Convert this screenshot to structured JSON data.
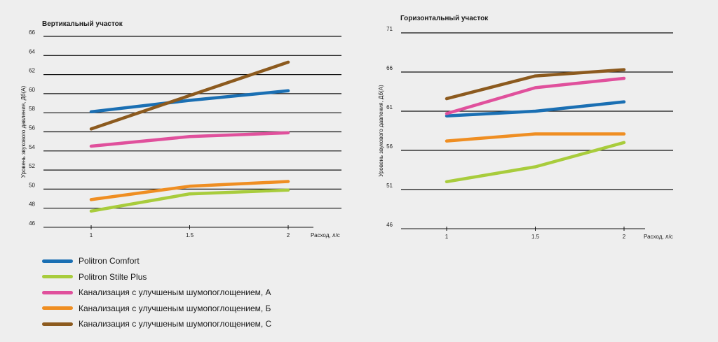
{
  "colors": {
    "background": "#eeeeee",
    "gridline": "#111111",
    "text": "#1a1a1a"
  },
  "chart_data": [
    {
      "type": "line",
      "title": "Вертикальный  участок",
      "xlabel": "Расход, л/с",
      "ylabel": "Уровень звукового давления, Дб(А)",
      "x": [
        1,
        1.5,
        2
      ],
      "x_ticks": [
        "1",
        "1.5",
        "2"
      ],
      "ylim": [
        46,
        66
      ],
      "y_ticks": [
        "46",
        "48",
        "50",
        "52",
        "54",
        "56",
        "58",
        "60",
        "62",
        "64",
        "66"
      ],
      "grid": true,
      "series": [
        {
          "name": "Politron Comfort",
          "color": "#1a6fb3",
          "values": [
            58.1,
            59.3,
            60.3
          ]
        },
        {
          "name": "Politron Stilte Plus",
          "color": "#a8cc3c",
          "values": [
            47.7,
            49.5,
            49.9
          ]
        },
        {
          "name": "Канализация с улучшеным шумопоглощением,  А",
          "color": "#e0509c",
          "values": [
            54.5,
            55.5,
            55.9
          ]
        },
        {
          "name": "Канализация с улучшеным шумопоглощением,  Б",
          "color": "#ef8e22",
          "values": [
            48.9,
            50.3,
            50.8
          ]
        },
        {
          "name": "Канализация с улучшеным шумопоглощением,  С",
          "color": "#8c5a1e",
          "values": [
            56.3,
            59.8,
            63.3
          ]
        }
      ]
    },
    {
      "type": "line",
      "title": "Горизонтальный  участок",
      "xlabel": "Расход, л/с",
      "ylabel": "Уровень звукового давления, Дб(А)",
      "x": [
        1,
        1.5,
        2
      ],
      "x_ticks": [
        "1",
        "1.5",
        "2"
      ],
      "ylim": [
        46,
        71
      ],
      "y_ticks": [
        "46",
        "51",
        "56",
        "61",
        "66",
        "71"
      ],
      "grid": true,
      "series": [
        {
          "name": "Politron Comfort",
          "color": "#1a6fb3",
          "values": [
            60.4,
            61.0,
            62.2
          ]
        },
        {
          "name": "Politron Stilte Plus",
          "color": "#a8cc3c",
          "values": [
            52.0,
            53.9,
            57.0
          ]
        },
        {
          "name": "Канализация с улучшеным шумопоглощением,  А",
          "color": "#e0509c",
          "values": [
            60.7,
            64.0,
            65.2
          ]
        },
        {
          "name": "Канализация с улучшеным шумопоглощением,  Б",
          "color": "#ef8e22",
          "values": [
            57.2,
            58.1,
            58.1
          ]
        },
        {
          "name": "Канализация с улучшеным шумопоглощением,  С",
          "color": "#8c5a1e",
          "values": [
            62.6,
            65.5,
            66.3
          ]
        }
      ]
    }
  ],
  "legend": [
    {
      "label": "Politron Comfort",
      "color": "#1a6fb3"
    },
    {
      "label": "Politron Stilte Plus",
      "color": "#a8cc3c"
    },
    {
      "label": "Канализация с улучшеным шумопоглощением,  А",
      "color": "#e0509c"
    },
    {
      "label": "Канализация с улучшеным шумопоглощением,  Б",
      "color": "#ef8e22"
    },
    {
      "label": "Канализация с улучшеным шумопоглощением,  С",
      "color": "#8c5a1e"
    }
  ]
}
